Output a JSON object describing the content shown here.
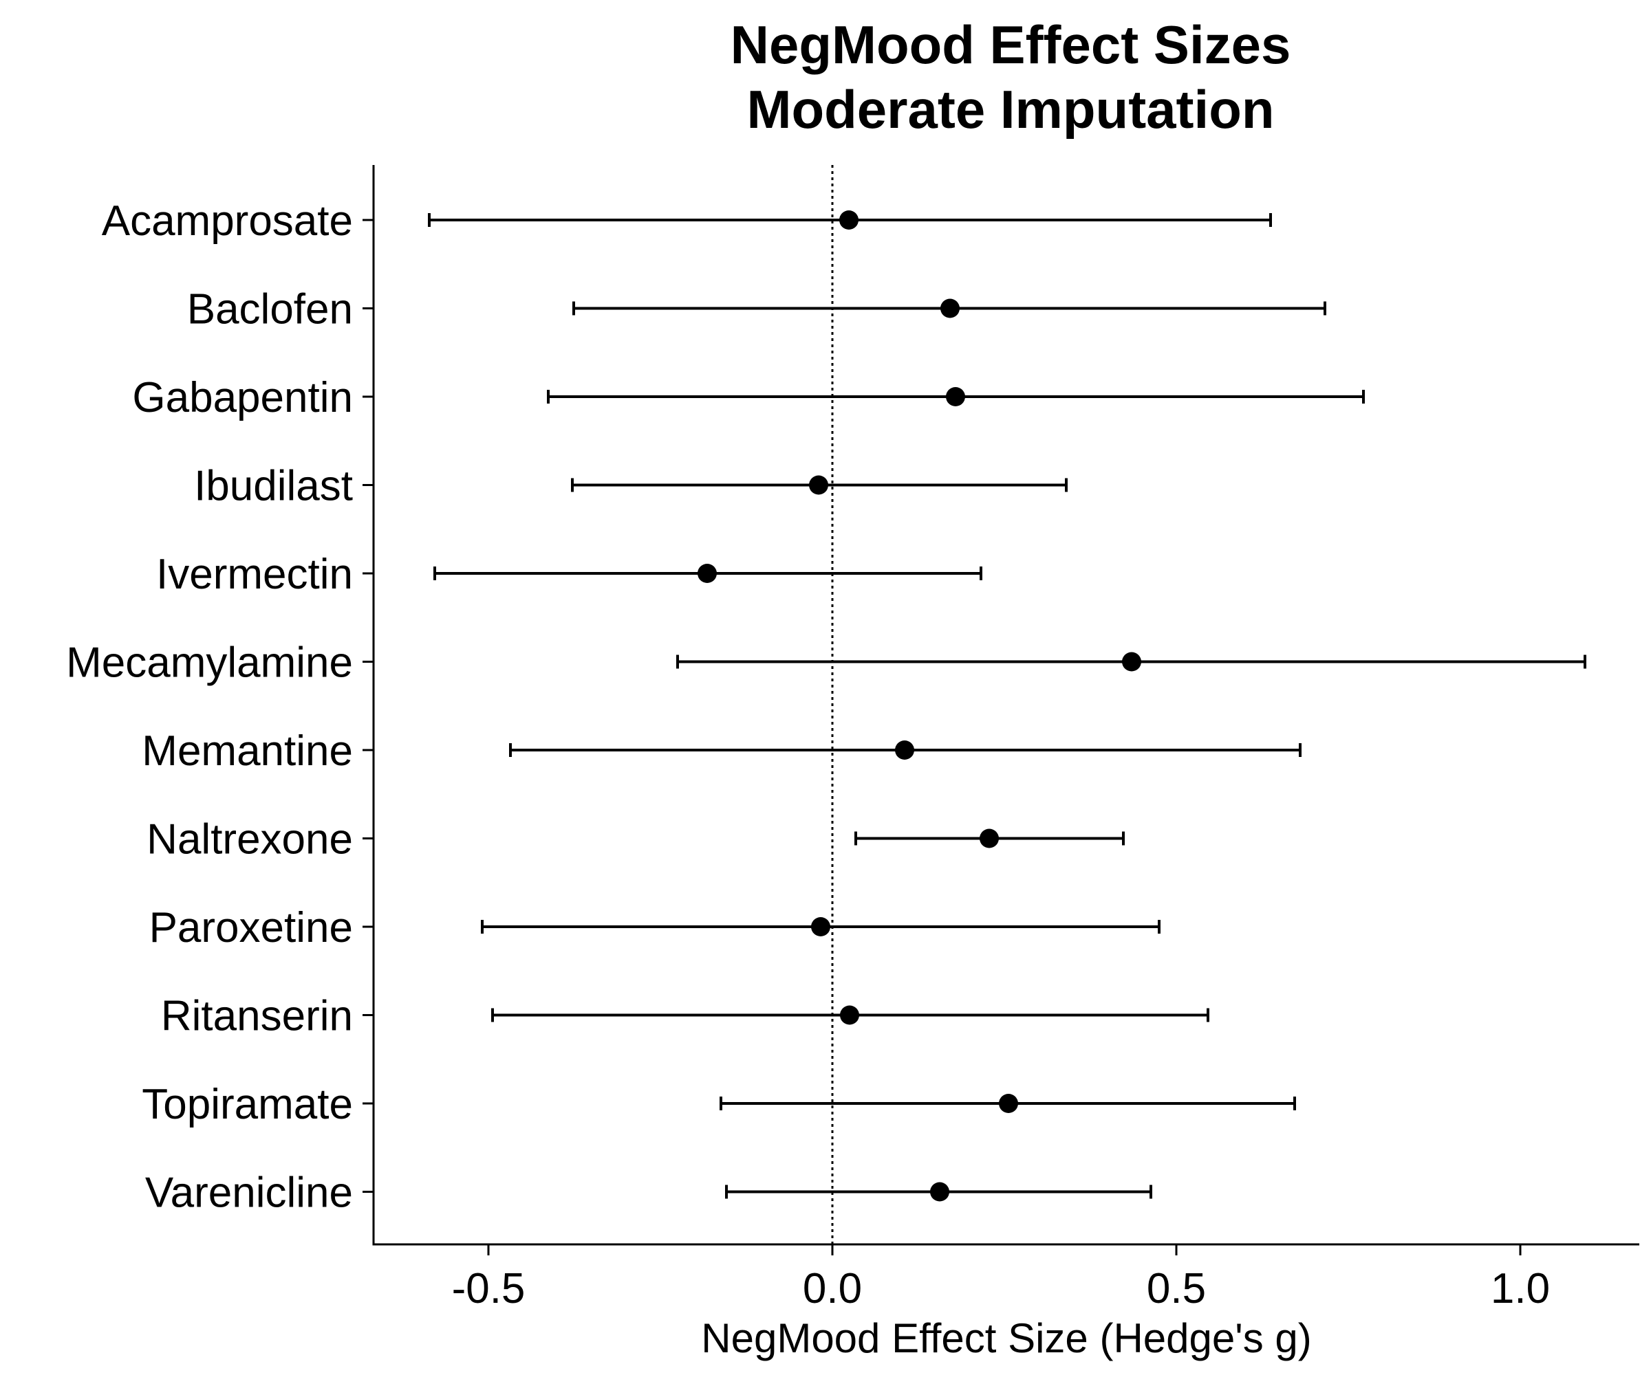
{
  "chart_data": {
    "type": "forest",
    "title": [
      "NegMood Effect Sizes",
      "Moderate Imputation"
    ],
    "xlabel": "NegMood Effect Size (Hedge's g)",
    "ylabel": "",
    "xlim": [
      -0.67,
      1.18
    ],
    "xticks": [
      -0.5,
      0.0,
      0.5,
      1.0
    ],
    "xtick_labels": [
      "-0.5",
      "0.0",
      "0.5",
      "1.0"
    ],
    "reference_line": {
      "x": 0.0,
      "style": "dotted"
    },
    "grid": false,
    "point_color": "#000000",
    "line_color": "#000000",
    "categories": [
      "Acamprosate",
      "Baclofen",
      "Gabapentin",
      "Ibudilast",
      "Ivermectin",
      "Mecamylamine",
      "Memantine",
      "Naltrexone",
      "Paroxetine",
      "Ritanserin",
      "Topiramate",
      "Varenicline"
    ],
    "estimates": [
      0.024,
      0.171,
      0.179,
      -0.02,
      -0.182,
      0.435,
      0.105,
      0.228,
      -0.017,
      0.025,
      0.256,
      0.156
    ],
    "lower": [
      -0.586,
      -0.376,
      -0.413,
      -0.378,
      -0.578,
      -0.225,
      -0.468,
      0.034,
      -0.509,
      -0.494,
      -0.162,
      -0.154
    ],
    "upper": [
      0.637,
      0.716,
      0.772,
      0.34,
      0.216,
      1.094,
      0.68,
      0.423,
      0.475,
      0.546,
      0.672,
      0.463
    ]
  }
}
